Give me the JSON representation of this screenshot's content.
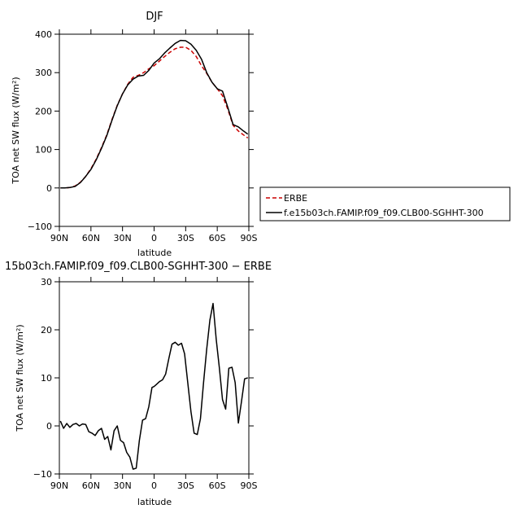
{
  "chart_data": [
    {
      "type": "line",
      "title": "DJF",
      "xlabel": "latitude",
      "ylabel": "TOA net SW flux (W/m²)",
      "xlim": [
        90,
        -90
      ],
      "ylim": [
        -100,
        400
      ],
      "x_ticks": [
        {
          "value": 90,
          "label": "90N"
        },
        {
          "value": 60,
          "label": "60N"
        },
        {
          "value": 30,
          "label": "30N"
        },
        {
          "value": 0,
          "label": "0"
        },
        {
          "value": -30,
          "label": "30S"
        },
        {
          "value": -60,
          "label": "60S"
        },
        {
          "value": -90,
          "label": "90S"
        }
      ],
      "y_ticks": [
        -100,
        0,
        100,
        200,
        300,
        400
      ],
      "legend_position": "right",
      "series": [
        {
          "name": "ERBE",
          "color": "#cc0000",
          "dash": "dashed",
          "x": [
            89,
            85,
            80,
            75,
            70,
            65,
            60,
            55,
            50,
            45,
            40,
            35,
            30,
            25,
            20,
            15,
            10,
            5,
            0,
            -5,
            -10,
            -15,
            -20,
            -25,
            -30,
            -35,
            -40,
            -45,
            -50,
            -55,
            -60,
            -65,
            -70,
            -75,
            -80,
            -85,
            -89
          ],
          "y": [
            0,
            0,
            1,
            5,
            15,
            30,
            50,
            75,
            105,
            138,
            178,
            215,
            245,
            270,
            288,
            293,
            300,
            310,
            318,
            330,
            342,
            353,
            362,
            366,
            366,
            358,
            342,
            318,
            298,
            275,
            258,
            240,
            205,
            163,
            148,
            138,
            130
          ]
        },
        {
          "name": "f.e15b03ch.FAMIP.f09_f09.CLB00-SGHHT-300",
          "color": "#000000",
          "dash": "solid",
          "x": [
            89,
            85,
            80,
            75,
            70,
            65,
            60,
            55,
            50,
            45,
            40,
            35,
            30,
            25,
            20,
            15,
            10,
            5,
            0,
            -5,
            -10,
            -15,
            -20,
            -25,
            -30,
            -35,
            -40,
            -45,
            -50,
            -55,
            -60,
            -65,
            -70,
            -75,
            -80,
            -85,
            -89
          ],
          "y": [
            0,
            0,
            1,
            4,
            14,
            30,
            48,
            73,
            103,
            136,
            176,
            214,
            245,
            268,
            283,
            291,
            293,
            306,
            325,
            336,
            351,
            364,
            376,
            384,
            383,
            374,
            358,
            335,
            300,
            275,
            258,
            252,
            210,
            165,
            159,
            148,
            140
          ]
        }
      ]
    },
    {
      "type": "line",
      "title": "15b03ch.FAMIP.f09_f09.CLB00-SGHHT-300 − ERBE",
      "xlabel": "latitude",
      "ylabel": "TOA net SW flux (W/m²)",
      "xlim": [
        90,
        -90
      ],
      "ylim": [
        -10,
        30
      ],
      "x_ticks": [
        {
          "value": 90,
          "label": "90N"
        },
        {
          "value": 60,
          "label": "60N"
        },
        {
          "value": 30,
          "label": "30N"
        },
        {
          "value": 0,
          "label": "0"
        },
        {
          "value": -30,
          "label": "30S"
        },
        {
          "value": -60,
          "label": "60S"
        },
        {
          "value": -90,
          "label": "90S"
        }
      ],
      "y_ticks": [
        -10,
        0,
        10,
        20,
        30
      ],
      "series": [
        {
          "color": "#000000",
          "dash": "solid",
          "x": [
            89,
            86,
            83,
            80,
            77,
            74,
            71,
            68,
            65,
            62,
            59,
            56,
            53,
            50,
            47,
            44,
            41,
            38,
            35,
            32,
            29,
            26,
            23,
            20,
            17,
            14,
            11,
            8,
            5,
            2,
            0,
            -2,
            -5,
            -8,
            -11,
            -14,
            -17,
            -20,
            -23,
            -26,
            -29,
            -32,
            -35,
            -38,
            -41,
            -44,
            -47,
            -50,
            -53,
            -56,
            -59,
            -62,
            -65,
            -68,
            -71,
            -74,
            -77,
            -80,
            -83,
            -86,
            -89
          ],
          "y": [
            1,
            -0.5,
            0.5,
            -0.3,
            0.3,
            0.5,
            0,
            0.4,
            0.3,
            -1.2,
            -1.5,
            -2,
            -1,
            -0.5,
            -2.8,
            -2.2,
            -5,
            -1,
            0,
            -3,
            -3.5,
            -5.5,
            -6.5,
            -9,
            -8.8,
            -3,
            1.2,
            1.5,
            4,
            8,
            8.2,
            8.6,
            9.2,
            9.6,
            10.8,
            14,
            17,
            17.4,
            16.8,
            17.2,
            15,
            9,
            3,
            -1.5,
            -1.8,
            1.5,
            9,
            16,
            22,
            25.5,
            18,
            12,
            5.5,
            3.5,
            12,
            12.2,
            9,
            0.6,
            5,
            9.8,
            10
          ]
        }
      ]
    }
  ]
}
